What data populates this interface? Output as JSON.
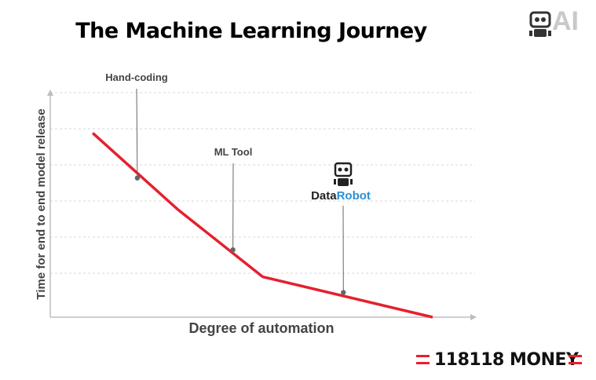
{
  "header": {
    "title": "The Machine Learning Journey",
    "logo_text": "AI",
    "logo_icon": "robot-icon"
  },
  "footer": {
    "brand_text": "118118 MONEY",
    "brand_color": "#e5202e"
  },
  "chart_data": {
    "type": "line",
    "title": "The Machine Learning Journey",
    "xlabel": "Degree of automation",
    "ylabel": "Time for end to end model release",
    "grid": true,
    "line_color": "#e5202e",
    "series": [
      {
        "x": [
          0.1,
          0.3,
          0.5,
          0.9
        ],
        "y": [
          0.82,
          0.48,
          0.18,
          0.0
        ]
      }
    ],
    "xlim": [
      0,
      1
    ],
    "ylim": [
      0,
      1
    ],
    "annotations": [
      {
        "text": "Hand-coding",
        "x": 0.205,
        "y": 0.62,
        "color": "#444444"
      },
      {
        "text": "ML Tool",
        "x": 0.43,
        "y": 0.3,
        "color": "#444444"
      },
      {
        "text": "DataRobot",
        "x": 0.69,
        "y": 0.11,
        "color": "#444444",
        "accent_color": "#2b8fd6",
        "icon": "robot-icon"
      }
    ]
  }
}
